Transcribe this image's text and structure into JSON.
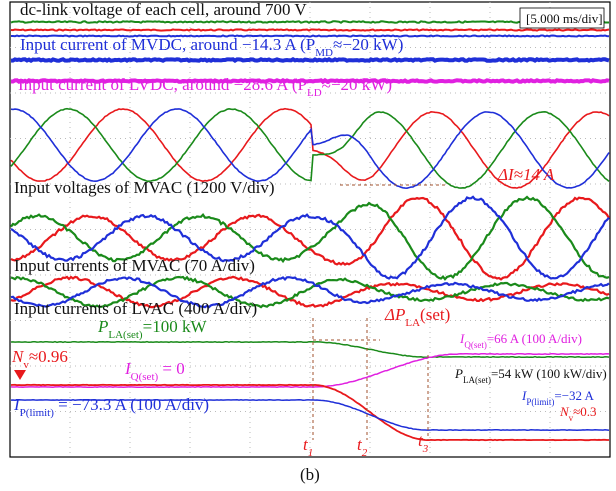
{
  "figure": {
    "time_div": "[5.000 ms/div]",
    "dc_link": "dc-link voltage of each cell, around 700 V",
    "mvdc": {
      "base": "Input current of MVDC, around −14.3 A  (P",
      "sub": "MD",
      "tail": "≈−20 kW)"
    },
    "lvdc": {
      "base": "Input current of LVDC, around −28.6 A  (P",
      "sub": "LD",
      "tail": "≈−20 kW)"
    },
    "mvac_v": "Input voltages of MVAC (1200 V/div)",
    "delta_i": "ΔI≈14 A",
    "mvac_i": "Input currents of MVAC (70 A/div)",
    "lvac_i": "Input currents of LVAC (400 A/div)",
    "p_la_100": {
      "base": "P",
      "sub": "LA(set)",
      "tail": "=100 kW"
    },
    "dp_la": {
      "base": "ΔP",
      "sub": "LA",
      "tail": "(set)"
    },
    "iq_66": {
      "base": "I",
      "sub": "Q(set)",
      "tail": "=66 A (100 A/div)"
    },
    "nv_096": {
      "base": "N",
      "sub": "v",
      "tail": "≈0.96"
    },
    "iq_0": {
      "base": "I",
      "sub": "Q(set)",
      "tail": "  = 0"
    },
    "p_la_54": {
      "base": "P",
      "sub": "LA(set)",
      "tail": "=54 kW (100 kW/div)"
    },
    "ip_32": {
      "base": "I",
      "sub": "P(limit)",
      "tail": "=−32 A"
    },
    "nv_03": {
      "base": "N",
      "sub": "v",
      "tail": "≈0.3"
    },
    "ip_73": {
      "base": "I",
      "sub": "P(limit)",
      "tail": " = −73.3 A (100 A/div)"
    },
    "t1": {
      "base": "t",
      "sub": "1"
    },
    "t2": {
      "base": "t",
      "sub": "2"
    },
    "t3": {
      "base": "t",
      "sub": "3"
    },
    "caption": "(b)"
  }
}
